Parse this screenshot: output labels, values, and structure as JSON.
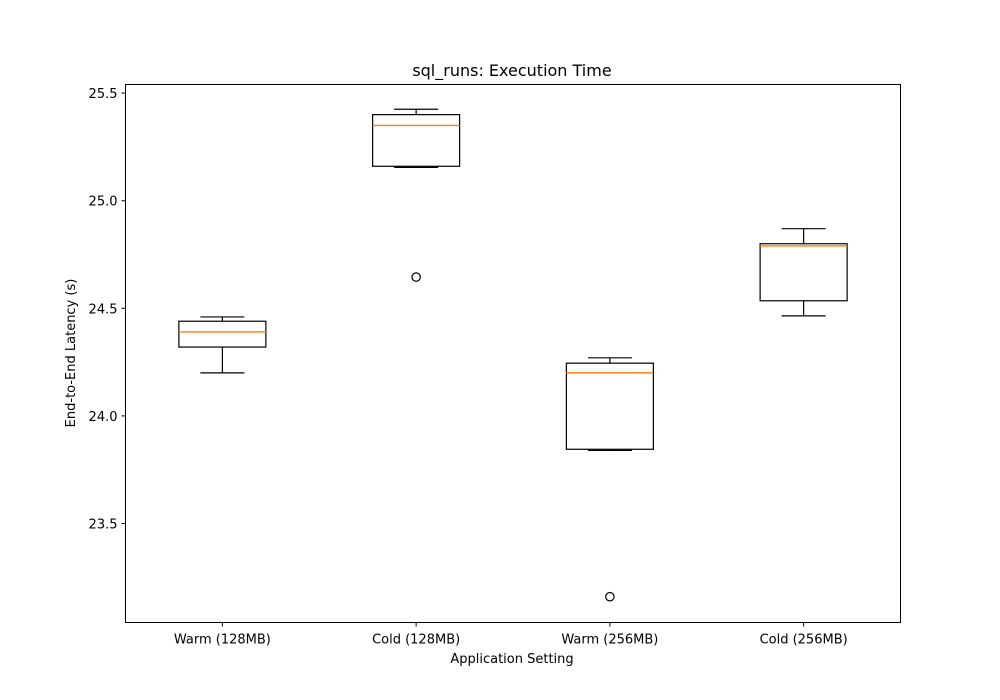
{
  "chart_data": {
    "type": "box",
    "title": "sql_runs: Execution Time",
    "xlabel": "Application Setting",
    "ylabel": "End-to-End Latency (s)",
    "ylim": [
      23.04,
      25.54
    ],
    "yticks": [
      "23.5",
      "24.0",
      "24.5",
      "25.0",
      "25.5"
    ],
    "categories": [
      "Warm (128MB)",
      "Cold (128MB)",
      "Warm (256MB)",
      "Cold (256MB)"
    ],
    "boxes": [
      {
        "whisker_low": 24.2,
        "q1": 24.32,
        "median": 24.39,
        "q3": 24.44,
        "whisker_high": 24.46,
        "outliers": []
      },
      {
        "whisker_low": 25.155,
        "q1": 25.16,
        "median": 25.35,
        "q3": 25.4,
        "whisker_high": 25.425,
        "outliers": [
          24.645
        ]
      },
      {
        "whisker_low": 23.84,
        "q1": 23.845,
        "median": 24.2,
        "q3": 24.245,
        "whisker_high": 24.27,
        "outliers": [
          23.16
        ]
      },
      {
        "whisker_low": 24.465,
        "q1": 24.535,
        "median": 24.79,
        "q3": 24.8,
        "whisker_high": 24.87,
        "outliers": []
      }
    ],
    "grid": false,
    "colors": {
      "box": "#000000",
      "median": "#ff7f0e",
      "outlier": "#000000"
    }
  }
}
